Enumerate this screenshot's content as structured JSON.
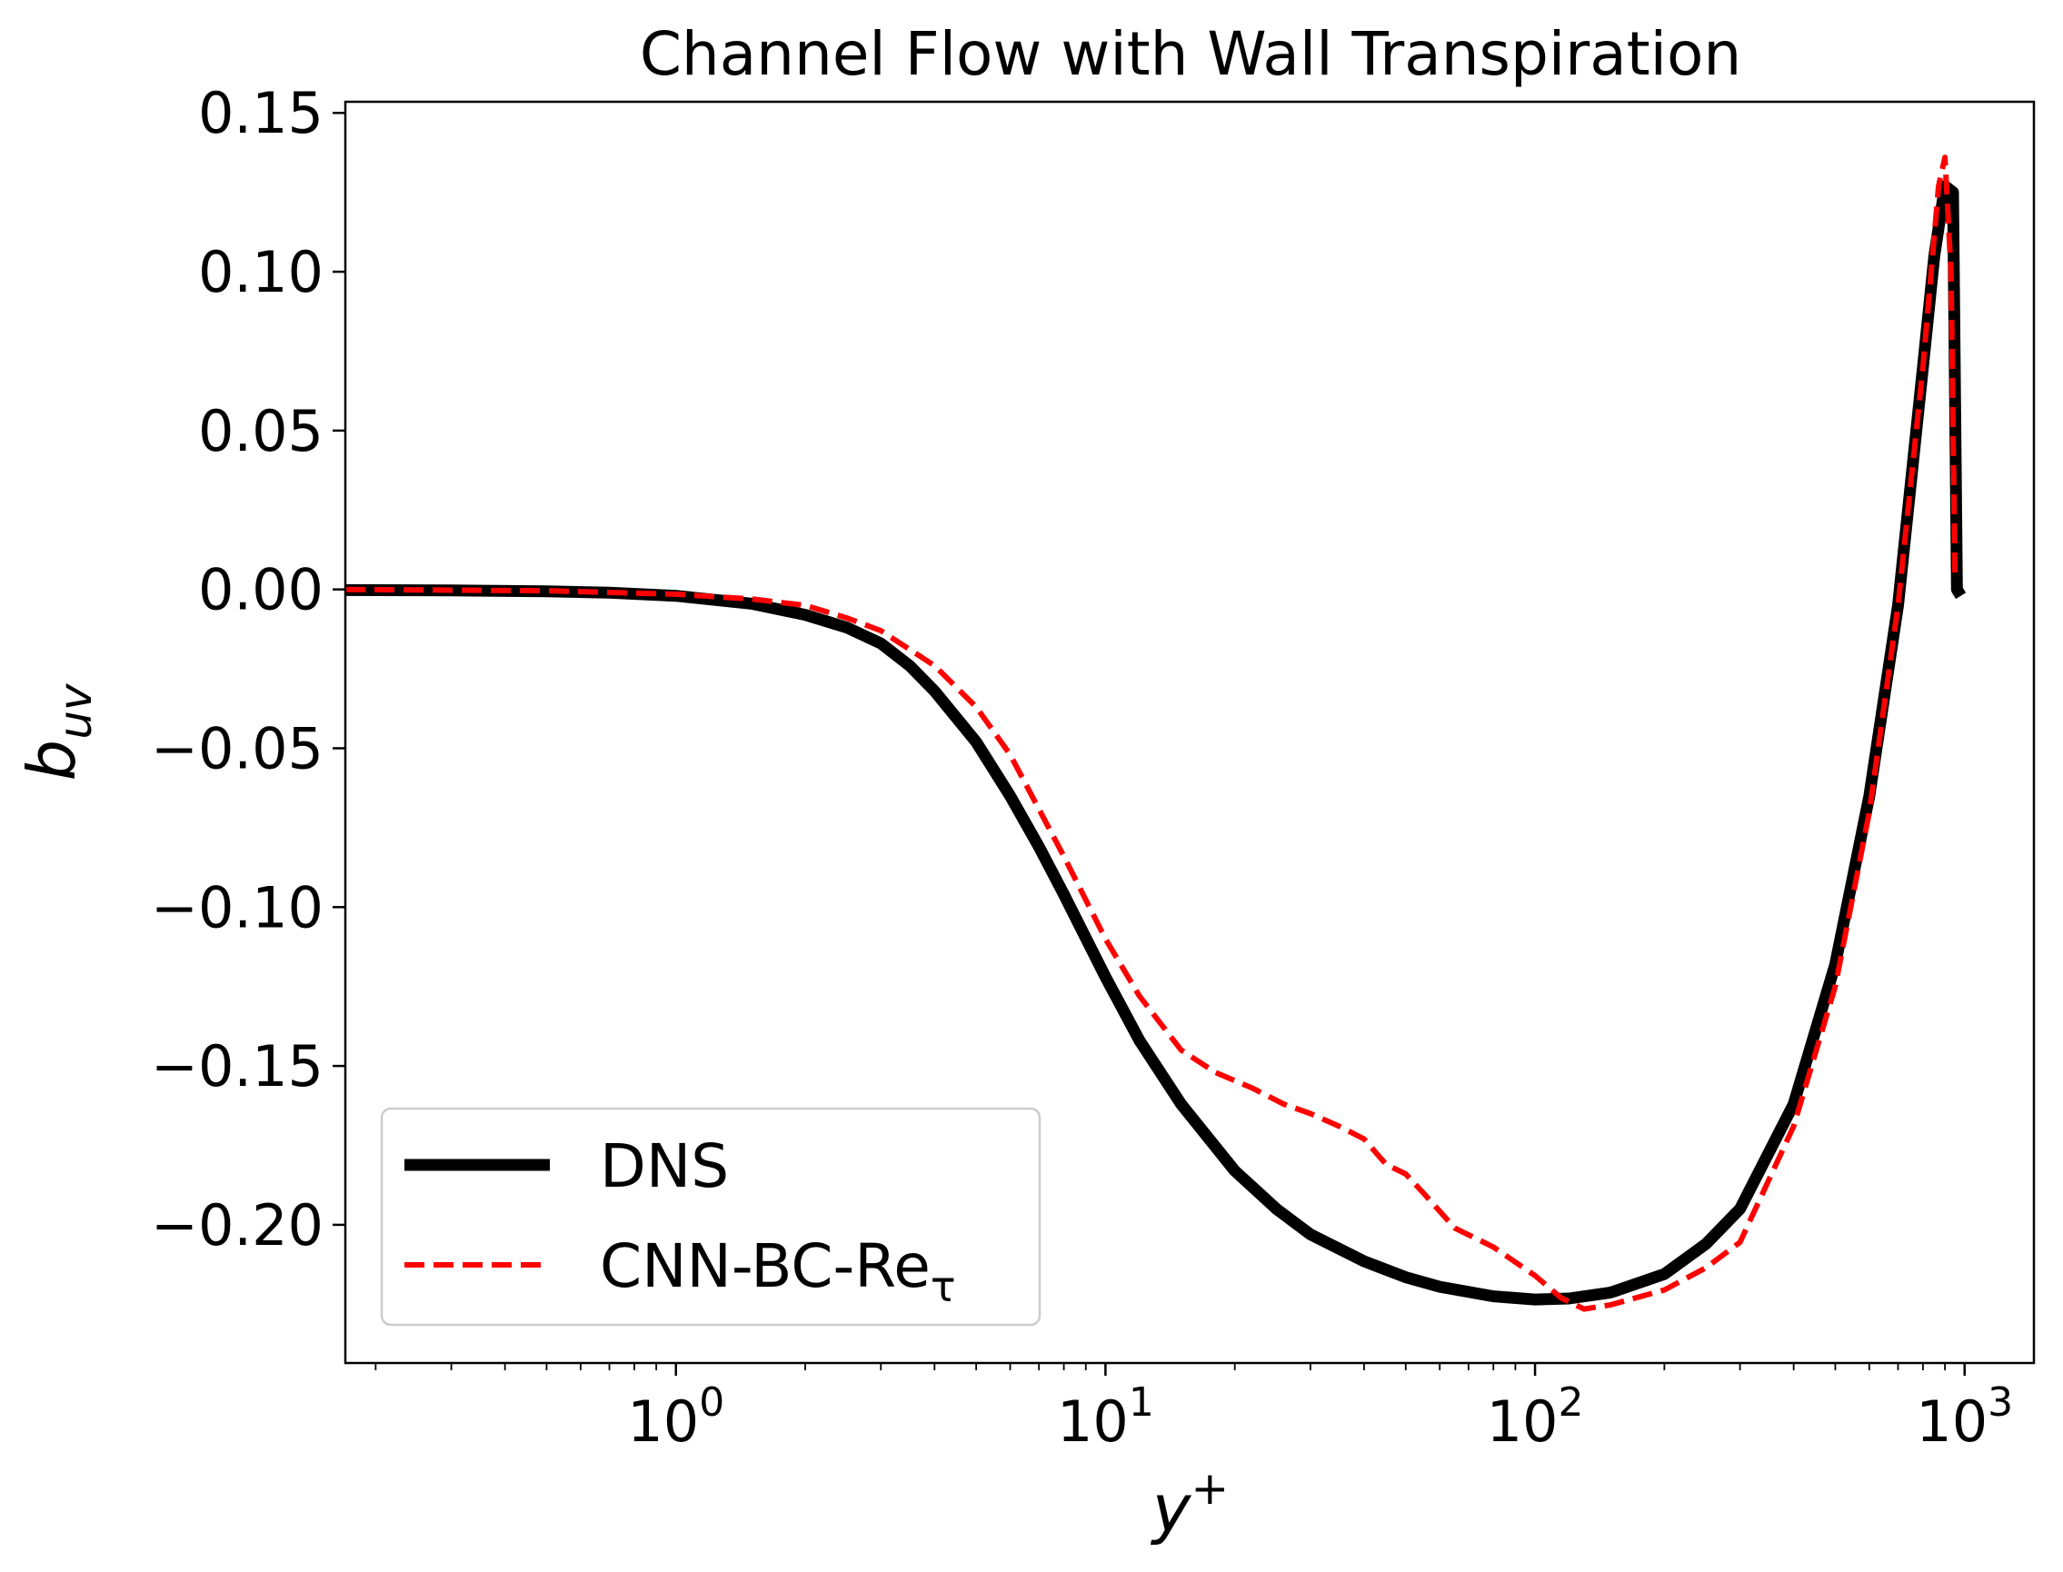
{
  "chart_data": {
    "type": "line",
    "title": "Channel Flow with Wall Transpiration",
    "xlabel": "y",
    "xlabel_sup": "+",
    "ylabel": "b",
    "ylabel_sub": "uv",
    "xscale": "log",
    "xlim": [
      0.17,
      1450
    ],
    "ylim": [
      -0.2435,
      0.1535
    ],
    "x_ticks": [
      {
        "value": 1,
        "base": "10",
        "exp": "0"
      },
      {
        "value": 10,
        "base": "10",
        "exp": "1"
      },
      {
        "value": 100,
        "base": "10",
        "exp": "2"
      },
      {
        "value": 1000,
        "base": "10",
        "exp": "3"
      }
    ],
    "y_ticks": [
      {
        "value": 0.15,
        "label": "0.15"
      },
      {
        "value": 0.1,
        "label": "0.10"
      },
      {
        "value": 0.05,
        "label": "0.05"
      },
      {
        "value": 0.0,
        "label": "0.00"
      },
      {
        "value": -0.05,
        "label": "−0.05"
      },
      {
        "value": -0.1,
        "label": "−0.10"
      },
      {
        "value": -0.15,
        "label": "−0.15"
      },
      {
        "value": -0.2,
        "label": "−0.20"
      }
    ],
    "grid": false,
    "legend_position": "lower-left",
    "series": [
      {
        "name": "DNS",
        "color": "#000000",
        "style": "solid",
        "x": [
          0.17,
          0.3,
          0.5,
          0.7,
          1.0,
          1.5,
          2.0,
          2.5,
          3.0,
          3.5,
          4.0,
          5.0,
          6.0,
          7.0,
          8.0,
          10.0,
          12.0,
          15.0,
          20.0,
          25.0,
          30.0,
          40.0,
          50.0,
          60.0,
          80.0,
          100.0,
          120.0,
          150.0,
          200.0,
          250.0,
          300.0,
          400.0,
          500.0,
          600.0,
          700.0,
          800.0,
          850.0,
          900.0,
          940.0,
          960.0,
          980.0
        ],
        "y": [
          -0.0002,
          -0.0003,
          -0.0006,
          -0.001,
          -0.002,
          -0.0045,
          -0.008,
          -0.012,
          -0.017,
          -0.024,
          -0.032,
          -0.048,
          -0.065,
          -0.081,
          -0.096,
          -0.122,
          -0.142,
          -0.162,
          -0.183,
          -0.195,
          -0.203,
          -0.2115,
          -0.2165,
          -0.2195,
          -0.2225,
          -0.2235,
          -0.2232,
          -0.2213,
          -0.2155,
          -0.206,
          -0.195,
          -0.162,
          -0.118,
          -0.065,
          -0.005,
          0.07,
          0.105,
          0.127,
          0.125,
          0.0,
          -0.002
        ]
      },
      {
        "name": "CNN-BC-Re",
        "name_sub": "τ",
        "color": "#ff0000",
        "style": "dashed",
        "x": [
          0.17,
          0.5,
          1.0,
          1.5,
          2.0,
          2.5,
          3.0,
          4.0,
          5.0,
          6.0,
          8.0,
          10.0,
          12.0,
          15.0,
          18.0,
          22.0,
          26.0,
          30.0,
          35.0,
          40.0,
          45.0,
          50.0,
          55.0,
          65.0,
          80.0,
          100.0,
          115.0,
          130.0,
          150.0,
          200.0,
          250.0,
          300.0,
          400.0,
          500.0,
          600.0,
          700.0,
          800.0,
          870.0,
          900.0,
          930.0,
          950.0
        ],
        "y": [
          0.0,
          -0.0004,
          -0.0015,
          -0.003,
          -0.005,
          -0.009,
          -0.013,
          -0.024,
          -0.037,
          -0.052,
          -0.084,
          -0.11,
          -0.128,
          -0.145,
          -0.152,
          -0.157,
          -0.162,
          -0.165,
          -0.169,
          -0.173,
          -0.181,
          -0.184,
          -0.19,
          -0.201,
          -0.207,
          -0.216,
          -0.223,
          -0.2265,
          -0.2252,
          -0.2205,
          -0.2135,
          -0.2055,
          -0.169,
          -0.125,
          -0.07,
          -0.005,
          0.07,
          0.127,
          0.136,
          0.1,
          0.003
        ]
      }
    ]
  }
}
